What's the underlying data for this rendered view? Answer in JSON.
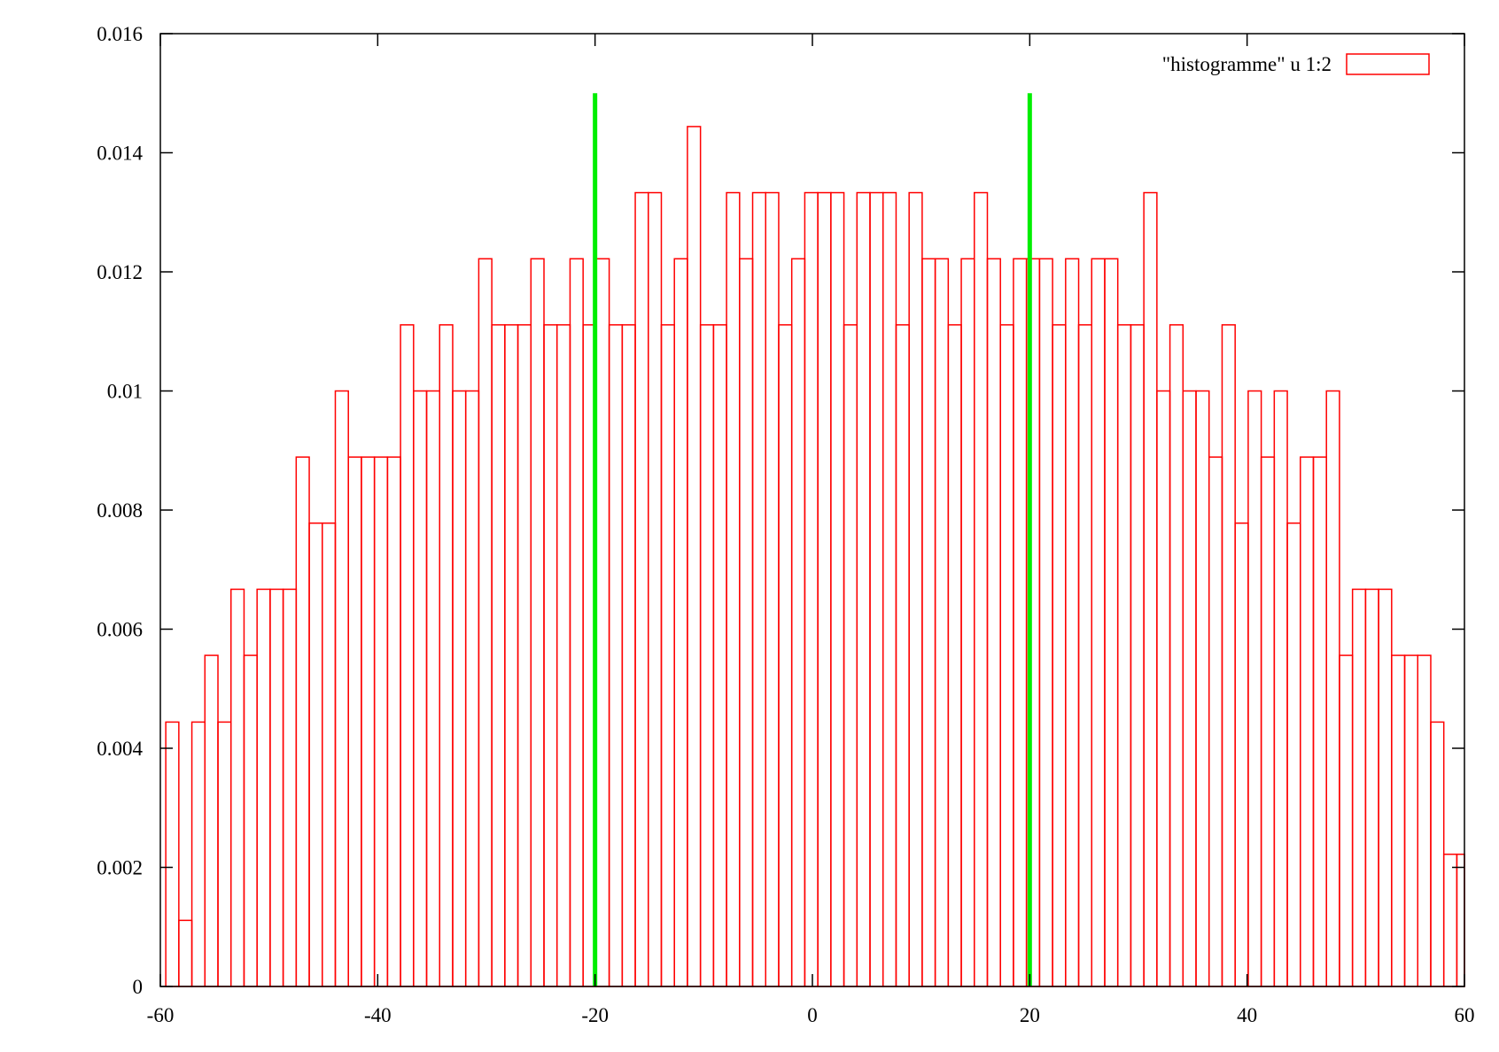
{
  "chart_data": {
    "type": "bar",
    "title": "",
    "xlabel": "",
    "ylabel": "",
    "xlim": [
      -60,
      60
    ],
    "ylim": [
      0,
      0.016
    ],
    "grid": false,
    "legend_position": "top-right",
    "x_ticks": [
      -60,
      -40,
      -20,
      0,
      20,
      40,
      60
    ],
    "x_tick_labels": [
      "-60",
      "-40",
      "-20",
      "0",
      "20",
      "40",
      "60"
    ],
    "y_ticks": [
      0,
      0.002,
      0.004,
      0.006,
      0.008,
      0.01,
      0.012,
      0.014,
      0.016
    ],
    "y_tick_labels": [
      "0",
      "0.002",
      "0.004",
      "0.006",
      "0.008",
      "0.01",
      "0.012",
      "0.014",
      "0.016"
    ],
    "bin_start": -59.5,
    "bin_width": 1.2,
    "series": [
      {
        "name": "\"histogramme\" u 1:2",
        "color": "#ff0000",
        "style": "outlined boxes",
        "values": [
          0.00444,
          0.00111,
          0.00444,
          0.00556,
          0.00444,
          0.00667,
          0.00556,
          0.00667,
          0.00667,
          0.00667,
          0.00889,
          0.00778,
          0.00778,
          0.01,
          0.00889,
          0.00889,
          0.00889,
          0.00889,
          0.01111,
          0.01,
          0.01,
          0.01111,
          0.01,
          0.01,
          0.01222,
          0.01111,
          0.01111,
          0.01111,
          0.01222,
          0.01111,
          0.01111,
          0.01222,
          0.01111,
          0.01222,
          0.01111,
          0.01111,
          0.01333,
          0.01333,
          0.01111,
          0.01222,
          0.01444,
          0.01111,
          0.01111,
          0.01333,
          0.01222,
          0.01333,
          0.01333,
          0.01111,
          0.01222,
          0.01333,
          0.01333,
          0.01333,
          0.01111,
          0.01333,
          0.01333,
          0.01333,
          0.01111,
          0.01333,
          0.01222,
          0.01222,
          0.01111,
          0.01222,
          0.01333,
          0.01222,
          0.01111,
          0.01222,
          0.01222,
          0.01222,
          0.01111,
          0.01222,
          0.01111,
          0.01222,
          0.01222,
          0.01111,
          0.01111,
          0.01333,
          0.01,
          0.01111,
          0.01,
          0.01,
          0.00889,
          0.01111,
          0.00778,
          0.01,
          0.00889,
          0.01,
          0.00778,
          0.00889,
          0.00889,
          0.01,
          0.00556,
          0.00667,
          0.00667,
          0.00667,
          0.00556,
          0.00556,
          0.00556,
          0.00444,
          0.00222,
          0.00222
        ]
      }
    ],
    "reference_lines": [
      {
        "x": -20,
        "y_top": 0.015,
        "color": "#00ee00"
      },
      {
        "x": 20,
        "y_top": 0.015,
        "color": "#00ee00"
      }
    ]
  }
}
